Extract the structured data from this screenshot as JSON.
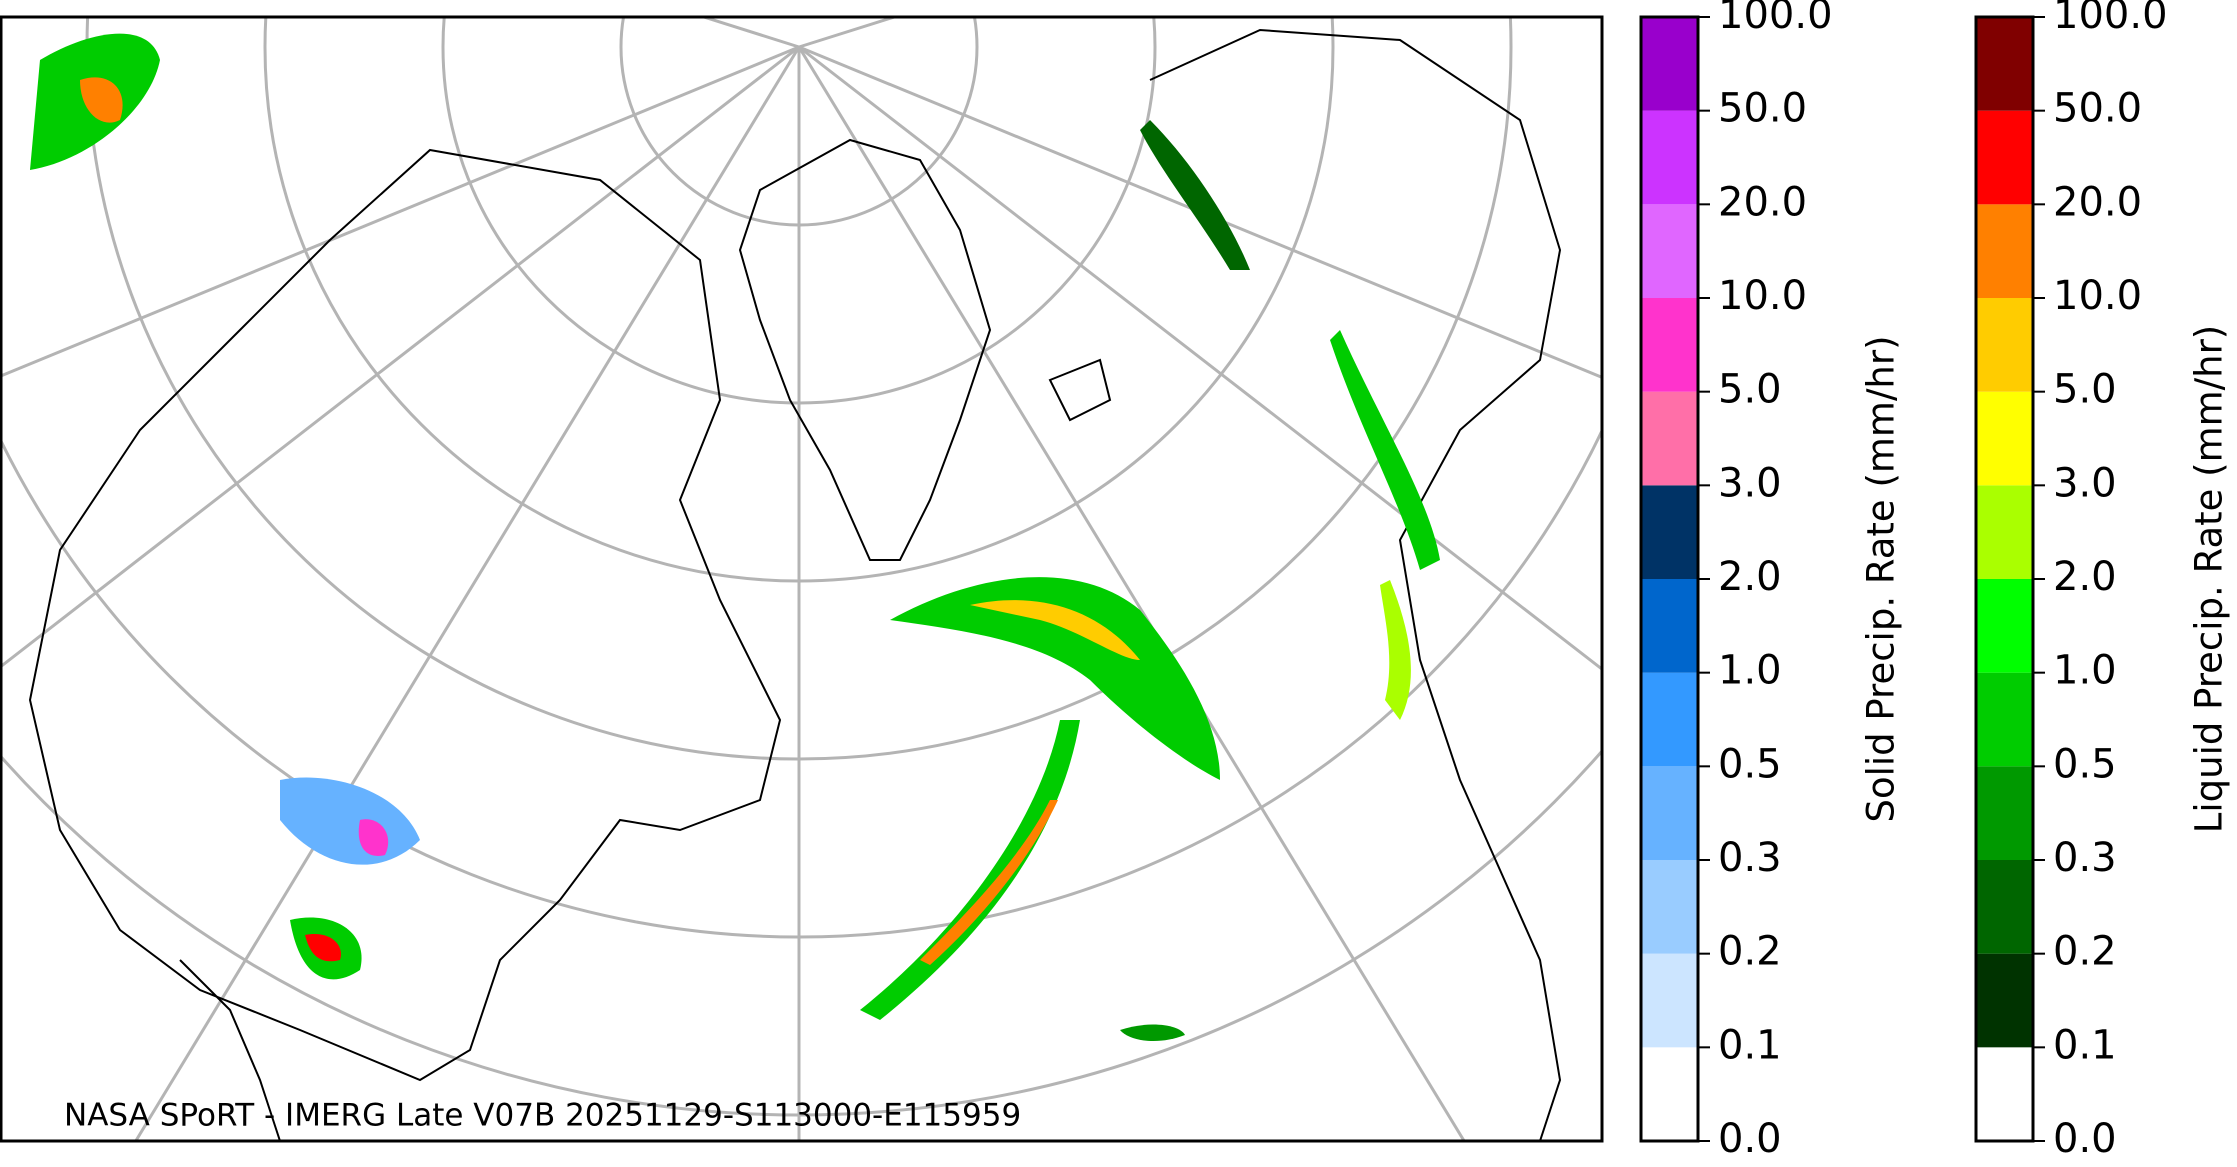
{
  "map": {
    "caption": "NASA SPoRT - IMERG Late V07B 20251129-S113000-E115959"
  },
  "colorbars": [
    {
      "label": "Solid Precip. Rate (mm/hr)",
      "ticks": [
        {
          "value": 0,
          "label": "0.0"
        },
        0.1,
        0.2,
        0.3,
        0.5,
        {
          "value": 1,
          "label": "1.0"
        },
        {
          "value": 2,
          "label": "2.0"
        },
        {
          "value": 3,
          "label": "3.0"
        },
        {
          "value": 5,
          "label": "5.0"
        },
        {
          "value": 10,
          "label": "10.0"
        },
        {
          "value": 20,
          "label": "20.0"
        },
        {
          "value": 50,
          "label": "50.0"
        },
        {
          "value": 100,
          "label": "100.0"
        }
      ],
      "colors": [
        "#ffffff",
        "#cce5ff",
        "#99ccff",
        "#66b2ff",
        "#3399ff",
        "#0066cc",
        "#003366",
        "#ff6fa8",
        "#ff33cc",
        "#e066ff",
        "#cc33ff",
        "#9900cc"
      ]
    },
    {
      "label": "Liquid Precip. Rate (mm/hr)",
      "ticks": [
        {
          "value": 0,
          "label": "0.0"
        },
        0.1,
        0.2,
        0.3,
        0.5,
        {
          "value": 1,
          "label": "1.0"
        },
        {
          "value": 2,
          "label": "2.0"
        },
        {
          "value": 3,
          "label": "3.0"
        },
        {
          "value": 5,
          "label": "5.0"
        },
        {
          "value": 10,
          "label": "10.0"
        },
        {
          "value": 20,
          "label": "20.0"
        },
        {
          "value": 50,
          "label": "50.0"
        },
        {
          "value": 100,
          "label": "100.0"
        }
      ],
      "colors": [
        "#ffffff",
        "#003300",
        "#006600",
        "#009900",
        "#00cc00",
        "#00ff00",
        "#aaff00",
        "#ffff00",
        "#ffcc00",
        "#ff8000",
        "#ff0000",
        "#800000",
        "#400000"
      ]
    }
  ]
}
